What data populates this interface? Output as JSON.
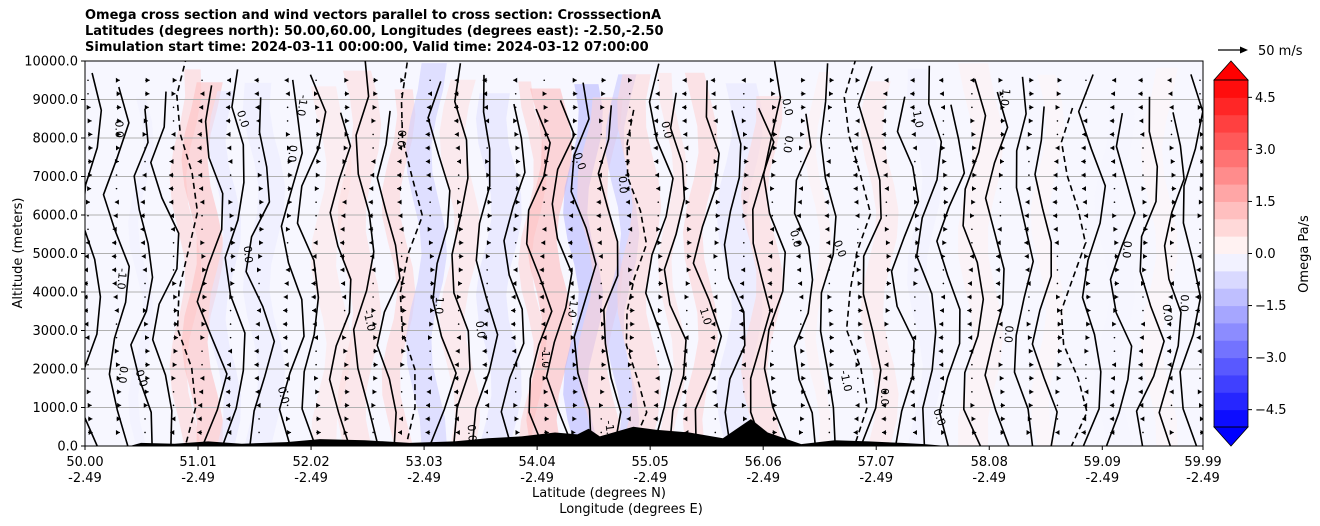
{
  "chart_data": {
    "type": "heatmap",
    "title_lines": [
      "Omega cross section and wind vectors parallel to cross section: CrosssectionA",
      "Latitudes (degrees north): 50.00,60.00, Longitudes (degrees east): -2.50,-2.50",
      "Simulation start time: 2024-03-11 00:00:00, Valid time: 2024-03-12 07:00:00"
    ],
    "ylabel": "Altitude (meters)",
    "xlabel_lines": [
      "Latitude (degrees N)",
      "Longitude (degrees E)"
    ],
    "ylim": [
      0,
      10000
    ],
    "xlim": [
      50.0,
      59.99
    ],
    "y_ticks": [
      0,
      1000,
      2000,
      3000,
      4000,
      5000,
      6000,
      7000,
      8000,
      9000,
      10000
    ],
    "y_tick_labels": [
      "0.0",
      "1000.0",
      "2000.0",
      "3000.0",
      "4000.0",
      "5000.0",
      "6000.0",
      "7000.0",
      "8000.0",
      "9000.0",
      "10000.0"
    ],
    "x_ticks": [
      50.0,
      51.01,
      52.02,
      53.03,
      54.04,
      55.05,
      56.06,
      57.07,
      58.08,
      59.09,
      59.99
    ],
    "x_tick_labels_lat": [
      "50.00",
      "51.01",
      "52.02",
      "53.03",
      "54.04",
      "55.05",
      "56.06",
      "57.07",
      "58.08",
      "59.09",
      "59.99"
    ],
    "x_tick_labels_lon": [
      "-2.49",
      "-2.49",
      "-2.49",
      "-2.49",
      "-2.49",
      "-2.49",
      "-2.49",
      "-2.49",
      "-2.49",
      "-2.49",
      "-2.49"
    ],
    "grid": "horizontal",
    "colorbar": {
      "label": "Omega Pa/s",
      "range": [
        -5.0,
        5.0
      ],
      "extend": "both",
      "ticks": [
        -4.5,
        -3.0,
        -1.5,
        0.0,
        1.5,
        3.0,
        4.5
      ],
      "tick_labels": [
        "−4.5",
        "−3.0",
        "−1.5",
        "0.0",
        "1.5",
        "3.0",
        "4.5"
      ],
      "colormap": "bwr",
      "negative_color": "#0000ff",
      "positive_color": "#ff0000"
    },
    "quiver_key": {
      "label": "50 m/s",
      "speed": 50
    },
    "contour_levels": [
      -1.0,
      0.0,
      1.0
    ],
    "contour_labels": [
      "-1.0",
      "0.0",
      "1.0"
    ],
    "omega_bands": [
      {
        "lat": 50.5,
        "omega": -0.3
      },
      {
        "lat": 50.9,
        "omega": 0.9
      },
      {
        "lat": 51.05,
        "omega": 1.3
      },
      {
        "lat": 51.25,
        "omega": -0.5
      },
      {
        "lat": 51.6,
        "omega": -0.4
      },
      {
        "lat": 52.2,
        "omega": 0.5
      },
      {
        "lat": 52.45,
        "omega": 0.7
      },
      {
        "lat": 52.8,
        "omega": 0.9
      },
      {
        "lat": 53.05,
        "omega": -1.0
      },
      {
        "lat": 53.35,
        "omega": 0.6
      },
      {
        "lat": 53.7,
        "omega": -0.6
      },
      {
        "lat": 54.0,
        "omega": 0.9
      },
      {
        "lat": 54.15,
        "omega": 1.4
      },
      {
        "lat": 54.45,
        "omega": -1.5
      },
      {
        "lat": 54.6,
        "omega": 0.9
      },
      {
        "lat": 54.8,
        "omega": -1.2
      },
      {
        "lat": 54.95,
        "omega": 0.8
      },
      {
        "lat": 55.25,
        "omega": 0.6
      },
      {
        "lat": 55.5,
        "omega": 0.9
      },
      {
        "lat": 55.85,
        "omega": -0.5
      },
      {
        "lat": 56.05,
        "omega": 0.8
      },
      {
        "lat": 56.55,
        "omega": 0.3
      },
      {
        "lat": 57.1,
        "omega": 0.5
      },
      {
        "lat": 57.5,
        "omega": -0.3
      },
      {
        "lat": 58.0,
        "omega": 0.3
      },
      {
        "lat": 58.6,
        "omega": 0.2
      },
      {
        "lat": 59.2,
        "omega": -0.2
      },
      {
        "lat": 59.6,
        "omega": 0.2
      }
    ],
    "terrain": [
      {
        "lat": 50.0,
        "height": 0
      },
      {
        "lat": 50.4,
        "height": 0
      },
      {
        "lat": 50.5,
        "height": 80
      },
      {
        "lat": 50.8,
        "height": 60
      },
      {
        "lat": 51.1,
        "height": 120
      },
      {
        "lat": 51.4,
        "height": 60
      },
      {
        "lat": 51.8,
        "height": 100
      },
      {
        "lat": 52.1,
        "height": 180
      },
      {
        "lat": 52.5,
        "height": 150
      },
      {
        "lat": 52.9,
        "height": 80
      },
      {
        "lat": 53.3,
        "height": 120
      },
      {
        "lat": 53.6,
        "height": 200
      },
      {
        "lat": 53.9,
        "height": 250
      },
      {
        "lat": 54.2,
        "height": 350
      },
      {
        "lat": 54.4,
        "height": 300
      },
      {
        "lat": 54.5,
        "height": 450
      },
      {
        "lat": 54.6,
        "height": 250
      },
      {
        "lat": 54.9,
        "height": 500
      },
      {
        "lat": 55.1,
        "height": 420
      },
      {
        "lat": 55.4,
        "height": 350
      },
      {
        "lat": 55.7,
        "height": 200
      },
      {
        "lat": 55.95,
        "height": 700
      },
      {
        "lat": 56.1,
        "height": 350
      },
      {
        "lat": 56.4,
        "height": 50
      },
      {
        "lat": 56.7,
        "height": 150
      },
      {
        "lat": 57.0,
        "height": 120
      },
      {
        "lat": 57.3,
        "height": 80
      },
      {
        "lat": 57.5,
        "height": 50
      },
      {
        "lat": 57.7,
        "height": 0
      },
      {
        "lat": 59.99,
        "height": 0
      }
    ],
    "wind_field": {
      "u_component_ms": [
        -10,
        10
      ],
      "arrows_per_column": 27,
      "columns": 40
    }
  }
}
